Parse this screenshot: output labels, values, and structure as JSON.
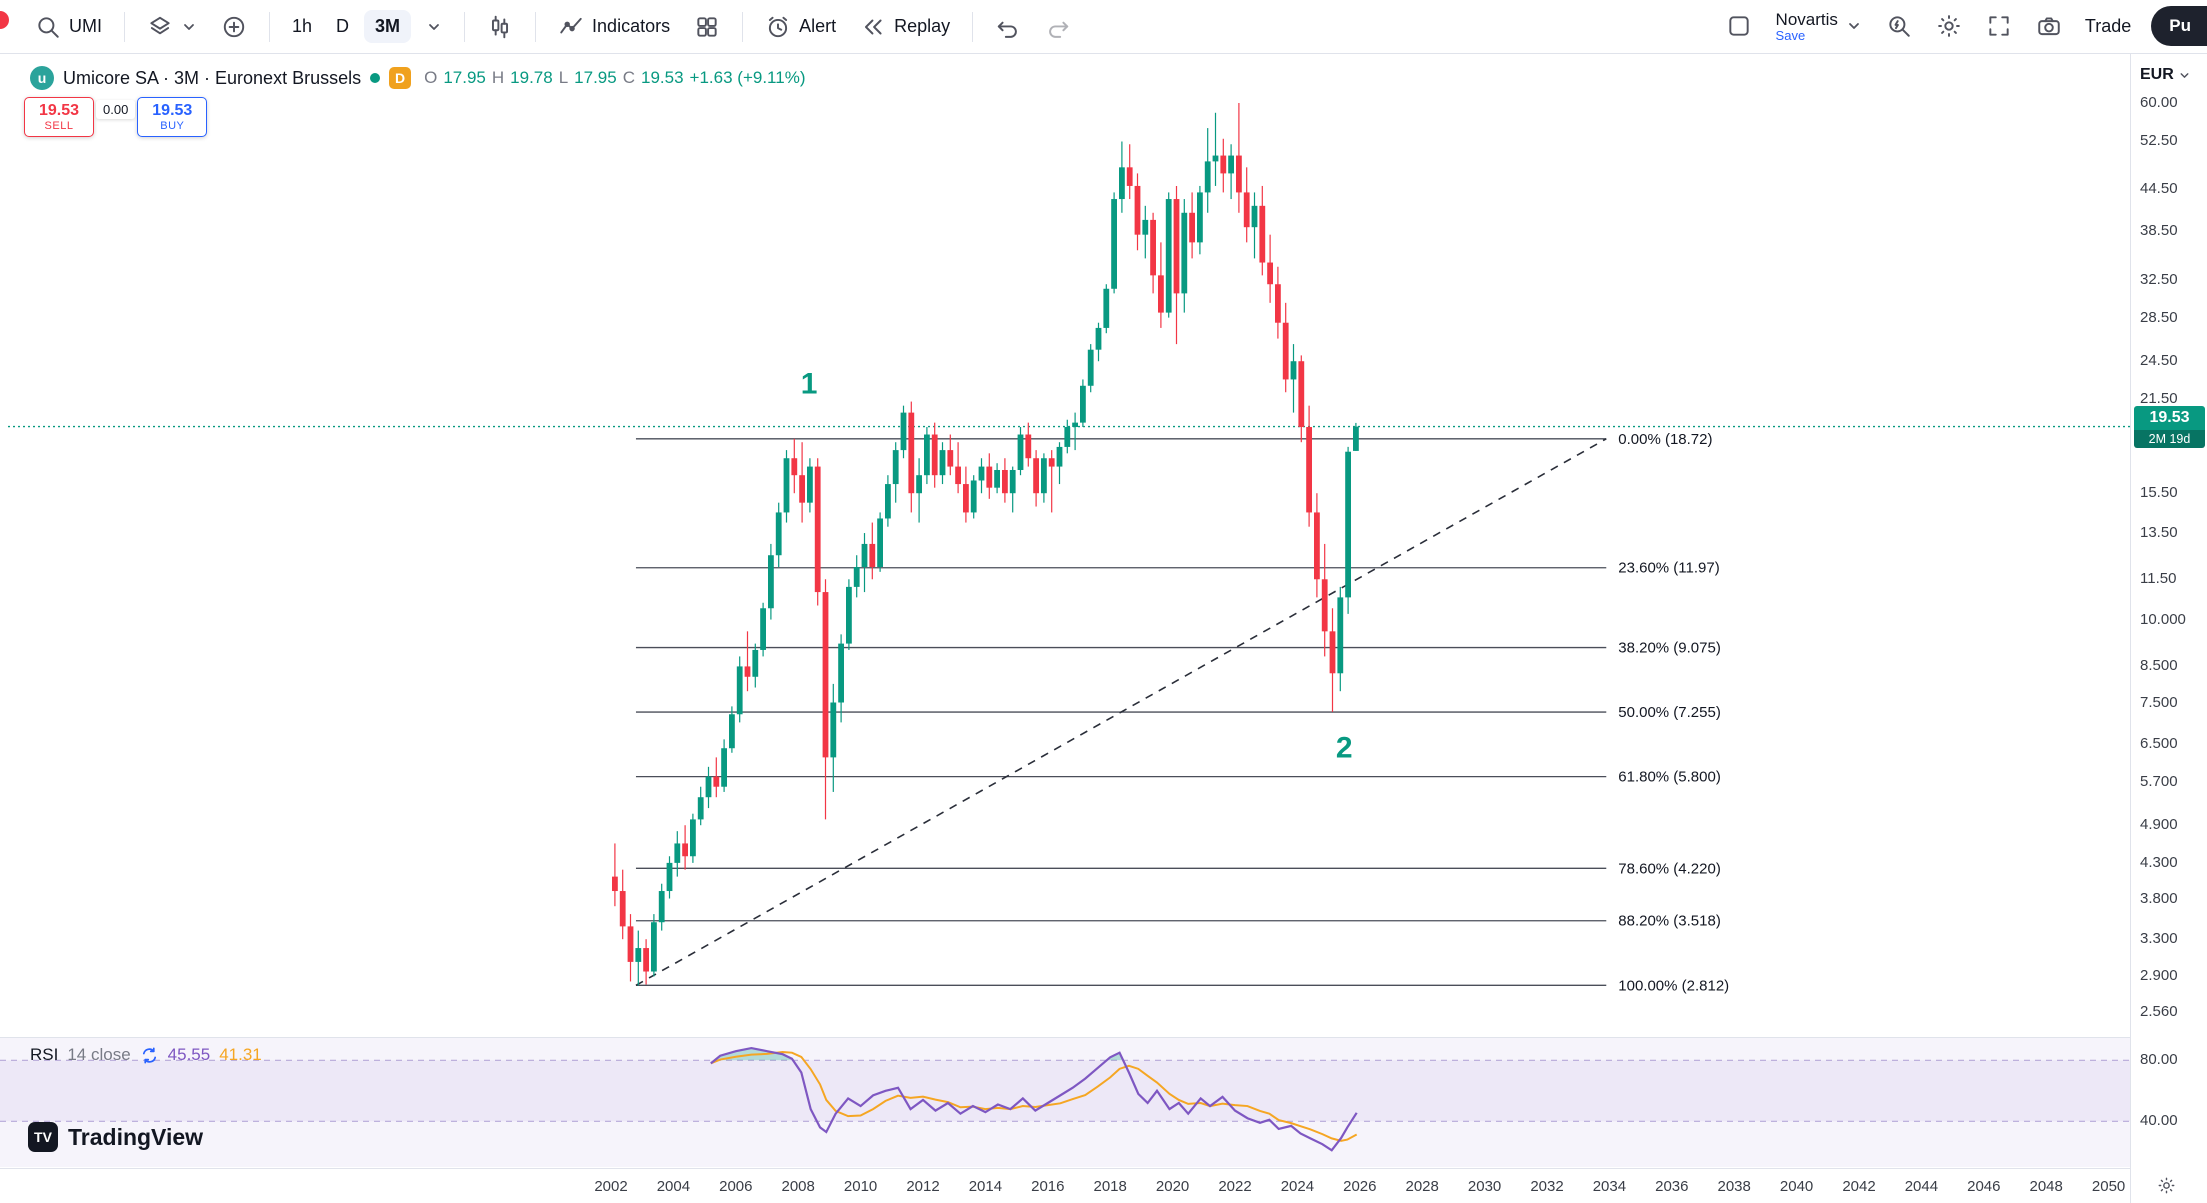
{
  "colors": {
    "up": "#089981",
    "down": "#f23645",
    "accent_blue": "#2962ff",
    "rsi_purple": "#7e57c2",
    "rsi_ma_yellow": "#f5a623",
    "sell_red": "#f23645"
  },
  "toolbar": {
    "symbol": "UMI",
    "intervals": [
      "1h",
      "D",
      "3M"
    ],
    "selected_interval": "3M",
    "indicators_label": "Indicators",
    "alert_label": "Alert",
    "replay_label": "Replay",
    "layout_name": "Novartis",
    "save_label": "Save",
    "trade_label": "Trade",
    "publish_label": "Pu"
  },
  "legend": {
    "title": "Umicore SA · 3M · Euronext Brussels",
    "delayed_badge": "D",
    "ohlc": {
      "o_label": "O",
      "o": "17.95",
      "h_label": "H",
      "h": "19.78",
      "l_label": "L",
      "l": "17.95",
      "c_label": "C",
      "c": "19.53",
      "change": "+1.63 (+9.11%)"
    }
  },
  "order_panel": {
    "sell_price": "19.53",
    "sell_label": "SELL",
    "spread": "0.00",
    "buy_price": "19.53",
    "buy_label": "BUY"
  },
  "price_axis": {
    "currency": "EUR",
    "labels": [
      {
        "text": "60.00",
        "price": 60
      },
      {
        "text": "52.50",
        "price": 52.5
      },
      {
        "text": "44.50",
        "price": 44.5
      },
      {
        "text": "38.50",
        "price": 38.5
      },
      {
        "text": "32.50",
        "price": 32.5
      },
      {
        "text": "28.50",
        "price": 28.5
      },
      {
        "text": "24.50",
        "price": 24.5
      },
      {
        "text": "21.50",
        "price": 21.5
      },
      {
        "text": "15.50",
        "price": 15.5
      },
      {
        "text": "13.50",
        "price": 13.5
      },
      {
        "text": "11.50",
        "price": 11.5
      },
      {
        "text": "10.000",
        "price": 10
      },
      {
        "text": "8.500",
        "price": 8.5
      },
      {
        "text": "7.500",
        "price": 7.5
      },
      {
        "text": "6.500",
        "price": 6.5
      },
      {
        "text": "5.700",
        "price": 5.7
      },
      {
        "text": "4.900",
        "price": 4.9
      },
      {
        "text": "4.300",
        "price": 4.3
      },
      {
        "text": "3.800",
        "price": 3.8
      },
      {
        "text": "3.300",
        "price": 3.3
      },
      {
        "text": "2.900",
        "price": 2.9
      },
      {
        "text": "2.560",
        "price": 2.56
      }
    ],
    "last_price": {
      "text": "19.53",
      "countdown": "2M 19d",
      "price": 19.53
    }
  },
  "rsi_axis": {
    "labels": [
      {
        "text": "80.00",
        "value": 80
      },
      {
        "text": "40.00",
        "value": 40
      }
    ]
  },
  "rsi_legend": {
    "title": "RSI",
    "params": "14 close",
    "value1": "45.55",
    "value2": "41.31"
  },
  "time_axis": {
    "years": [
      "2002",
      "2004",
      "2006",
      "2008",
      "2010",
      "2012",
      "2014",
      "2016",
      "2018",
      "2020",
      "2022",
      "2024",
      "2026",
      "2028",
      "2030",
      "2032",
      "2034",
      "2036",
      "2038",
      "2040",
      "2042",
      "2044",
      "2046",
      "2048",
      "2050"
    ]
  },
  "footer": {
    "logo_text": "TradingView"
  },
  "chart_data": {
    "type": "candlestick",
    "title": "Umicore SA · 3M · Euronext Brussels",
    "interval": "3M",
    "price_scale": "log",
    "x_range": [
      2002,
      2050
    ],
    "visible_price_range": [
      2.56,
      60
    ],
    "candles": [
      [
        2002.0,
        4.1,
        4.6,
        3.7,
        3.9
      ],
      [
        2002.25,
        3.9,
        4.2,
        3.3,
        3.45
      ],
      [
        2002.5,
        3.45,
        3.6,
        2.85,
        3.05
      ],
      [
        2002.75,
        3.05,
        3.4,
        2.81,
        3.2
      ],
      [
        2003.0,
        3.2,
        3.3,
        2.82,
        2.95
      ],
      [
        2003.25,
        2.95,
        3.6,
        2.9,
        3.5
      ],
      [
        2003.5,
        3.5,
        4.0,
        3.4,
        3.9
      ],
      [
        2003.75,
        3.9,
        4.4,
        3.8,
        4.3
      ],
      [
        2004.0,
        4.3,
        4.8,
        4.1,
        4.6
      ],
      [
        2004.25,
        4.6,
        4.9,
        4.2,
        4.4
      ],
      [
        2004.5,
        4.4,
        5.1,
        4.3,
        5.0
      ],
      [
        2004.75,
        5.0,
        5.6,
        4.9,
        5.4
      ],
      [
        2005.0,
        5.4,
        6.0,
        5.2,
        5.8
      ],
      [
        2005.25,
        5.8,
        6.2,
        5.4,
        5.6
      ],
      [
        2005.5,
        5.6,
        6.6,
        5.5,
        6.4
      ],
      [
        2005.75,
        6.4,
        7.4,
        6.3,
        7.2
      ],
      [
        2006.0,
        7.2,
        8.8,
        7.0,
        8.5
      ],
      [
        2006.25,
        8.5,
        9.6,
        7.8,
        8.2
      ],
      [
        2006.5,
        8.2,
        9.2,
        7.9,
        9.0
      ],
      [
        2006.75,
        9.0,
        10.6,
        8.8,
        10.4
      ],
      [
        2007.0,
        10.4,
        13.0,
        10.0,
        12.5
      ],
      [
        2007.25,
        12.5,
        15.0,
        12.0,
        14.5
      ],
      [
        2007.5,
        14.5,
        18.0,
        14.0,
        17.5
      ],
      [
        2007.75,
        17.5,
        18.72,
        15.5,
        16.5
      ],
      [
        2008.0,
        16.5,
        18.5,
        14.0,
        15.0
      ],
      [
        2008.25,
        15.0,
        17.5,
        14.5,
        17.0
      ],
      [
        2008.5,
        17.0,
        17.5,
        10.5,
        11.0
      ],
      [
        2008.75,
        11.0,
        11.5,
        5.0,
        6.2
      ],
      [
        2009.0,
        6.2,
        8.0,
        5.5,
        7.5
      ],
      [
        2009.25,
        7.5,
        9.5,
        7.0,
        9.2
      ],
      [
        2009.5,
        9.2,
        11.5,
        9.0,
        11.2
      ],
      [
        2009.75,
        11.2,
        12.5,
        10.8,
        12.0
      ],
      [
        2010.0,
        12.0,
        13.5,
        11.0,
        13.0
      ],
      [
        2010.25,
        13.0,
        14.0,
        11.5,
        12.0
      ],
      [
        2010.5,
        12.0,
        14.5,
        11.8,
        14.2
      ],
      [
        2010.75,
        14.2,
        16.5,
        13.8,
        16.0
      ],
      [
        2011.0,
        16.0,
        18.5,
        15.0,
        18.0
      ],
      [
        2011.25,
        18.0,
        21.0,
        17.5,
        20.5
      ],
      [
        2011.5,
        20.5,
        21.3,
        14.5,
        15.5
      ],
      [
        2011.75,
        15.5,
        17.5,
        14.0,
        16.5
      ],
      [
        2012.0,
        16.5,
        19.5,
        16.0,
        19.0
      ],
      [
        2012.25,
        19.0,
        19.8,
        15.8,
        16.5
      ],
      [
        2012.5,
        16.5,
        18.5,
        16.0,
        18.0
      ],
      [
        2012.75,
        18.0,
        19.0,
        16.5,
        17.0
      ],
      [
        2013.0,
        17.0,
        18.5,
        15.5,
        16.0
      ],
      [
        2013.25,
        16.0,
        17.0,
        14.0,
        14.5
      ],
      [
        2013.5,
        14.5,
        16.5,
        14.2,
        16.2
      ],
      [
        2013.75,
        16.2,
        17.5,
        15.5,
        17.0
      ],
      [
        2014.0,
        17.0,
        17.8,
        15.2,
        15.8
      ],
      [
        2014.25,
        15.8,
        17.2,
        15.5,
        16.8
      ],
      [
        2014.5,
        16.8,
        17.5,
        15.0,
        15.5
      ],
      [
        2014.75,
        15.5,
        17.0,
        14.5,
        16.8
      ],
      [
        2015.0,
        16.8,
        19.5,
        16.5,
        19.0
      ],
      [
        2015.25,
        19.0,
        19.8,
        17.0,
        17.5
      ],
      [
        2015.5,
        17.5,
        18.0,
        14.8,
        15.5
      ],
      [
        2015.75,
        15.5,
        17.8,
        15.0,
        17.5
      ],
      [
        2016.0,
        17.5,
        18.0,
        14.5,
        17.0
      ],
      [
        2016.25,
        17.0,
        18.5,
        16.0,
        18.2
      ],
      [
        2016.5,
        18.2,
        20.0,
        17.8,
        19.5
      ],
      [
        2016.75,
        19.5,
        20.5,
        18.0,
        19.8
      ],
      [
        2017.0,
        19.8,
        23.0,
        19.5,
        22.5
      ],
      [
        2017.25,
        22.5,
        26.0,
        22.0,
        25.5
      ],
      [
        2017.5,
        25.5,
        28.0,
        24.5,
        27.5
      ],
      [
        2017.75,
        27.5,
        32.0,
        27.0,
        31.5
      ],
      [
        2018.0,
        31.5,
        44.0,
        31.0,
        43.0
      ],
      [
        2018.25,
        43.0,
        52.5,
        41.0,
        48.0
      ],
      [
        2018.5,
        48.0,
        52.0,
        43.0,
        45.0
      ],
      [
        2018.75,
        45.0,
        47.0,
        36.0,
        38.0
      ],
      [
        2019.0,
        38.0,
        42.0,
        35.0,
        40.0
      ],
      [
        2019.25,
        40.0,
        41.0,
        31.0,
        33.0
      ],
      [
        2019.5,
        33.0,
        37.0,
        27.5,
        29.0
      ],
      [
        2019.75,
        29.0,
        44.0,
        28.5,
        43.0
      ],
      [
        2020.0,
        43.0,
        45.0,
        26.0,
        31.0
      ],
      [
        2020.25,
        31.0,
        43.0,
        29.0,
        41.0
      ],
      [
        2020.5,
        41.0,
        44.0,
        35.0,
        37.0
      ],
      [
        2020.75,
        37.0,
        45.0,
        35.5,
        44.0
      ],
      [
        2021.0,
        44.0,
        55.0,
        41.0,
        49.0
      ],
      [
        2021.25,
        49.0,
        58.0,
        45.0,
        50.0
      ],
      [
        2021.5,
        50.0,
        53.0,
        44.0,
        47.0
      ],
      [
        2021.75,
        47.0,
        52.0,
        43.0,
        50.0
      ],
      [
        2022.0,
        50.0,
        60.0,
        41.0,
        44.0
      ],
      [
        2022.25,
        44.0,
        48.0,
        37.0,
        39.0
      ],
      [
        2022.5,
        39.0,
        44.0,
        35.0,
        42.0
      ],
      [
        2022.75,
        42.0,
        45.0,
        33.0,
        34.5
      ],
      [
        2023.0,
        34.5,
        38.0,
        30.0,
        32.0
      ],
      [
        2023.25,
        32.0,
        34.0,
        26.5,
        28.0
      ],
      [
        2023.5,
        28.0,
        30.0,
        22.0,
        23.0
      ],
      [
        2023.75,
        23.0,
        26.0,
        20.5,
        24.5
      ],
      [
        2024.0,
        24.5,
        25.0,
        18.5,
        19.5
      ],
      [
        2024.25,
        19.5,
        21.0,
        13.8,
        14.5
      ],
      [
        2024.5,
        14.5,
        15.5,
        10.8,
        11.5
      ],
      [
        2024.75,
        11.5,
        13.0,
        8.8,
        9.6
      ],
      [
        2025.0,
        9.6,
        10.4,
        7.26,
        8.3
      ],
      [
        2025.25,
        8.3,
        11.2,
        7.8,
        10.8
      ],
      [
        2025.5,
        10.8,
        18.2,
        10.2,
        17.9
      ],
      [
        2025.75,
        17.95,
        19.78,
        17.95,
        19.53
      ]
    ],
    "fib": {
      "x_start_year": 2002.8,
      "x_end_year": 2033.9,
      "levels": [
        {
          "text": "0.00% (18.72)",
          "pct": 0.0,
          "price": 18.72
        },
        {
          "text": "23.60% (11.97)",
          "pct": 23.6,
          "price": 11.97
        },
        {
          "text": "38.20% (9.075)",
          "pct": 38.2,
          "price": 9.075
        },
        {
          "text": "50.00% (7.255)",
          "pct": 50.0,
          "price": 7.255
        },
        {
          "text": "61.80% (5.800)",
          "pct": 61.8,
          "price": 5.8
        },
        {
          "text": "78.60% (4.220)",
          "pct": 78.6,
          "price": 4.22
        },
        {
          "text": "88.20% (3.518)",
          "pct": 88.2,
          "price": 3.518
        },
        {
          "text": "100.00% (2.812)",
          "pct": 100.0,
          "price": 2.812
        }
      ]
    },
    "trendline": {
      "style": "dashed",
      "from": {
        "year": 2002.8,
        "price": 2.812
      },
      "to": {
        "year": 2033.9,
        "price": 18.72
      }
    },
    "waves": [
      {
        "text": "1",
        "year": 2008.35,
        "price": 21.9
      },
      {
        "text": "2",
        "year": 2025.5,
        "price": 6.2
      }
    ],
    "rsi": {
      "period": 14,
      "source": "close",
      "value": 45.55,
      "ma_value": 41.31,
      "bands": [
        80,
        40
      ],
      "points": [
        [
          2005.2,
          78
        ],
        [
          2005.5,
          83
        ],
        [
          2006.0,
          86
        ],
        [
          2006.5,
          88
        ],
        [
          2007.0,
          86
        ],
        [
          2007.5,
          84
        ],
        [
          2007.8,
          81
        ],
        [
          2008.1,
          72
        ],
        [
          2008.4,
          48
        ],
        [
          2008.7,
          36
        ],
        [
          2008.9,
          33
        ],
        [
          2009.2,
          45
        ],
        [
          2009.6,
          55
        ],
        [
          2010.0,
          50
        ],
        [
          2010.4,
          57
        ],
        [
          2010.8,
          60
        ],
        [
          2011.2,
          62
        ],
        [
          2011.6,
          48
        ],
        [
          2012.0,
          54
        ],
        [
          2012.4,
          47
        ],
        [
          2012.8,
          52
        ],
        [
          2013.2,
          45
        ],
        [
          2013.6,
          50
        ],
        [
          2014.0,
          46
        ],
        [
          2014.4,
          51
        ],
        [
          2014.8,
          48
        ],
        [
          2015.2,
          55
        ],
        [
          2015.6,
          47
        ],
        [
          2016.0,
          52
        ],
        [
          2016.4,
          57
        ],
        [
          2016.8,
          62
        ],
        [
          2017.2,
          68
        ],
        [
          2017.6,
          75
        ],
        [
          2018.0,
          82
        ],
        [
          2018.3,
          85
        ],
        [
          2018.6,
          72
        ],
        [
          2018.9,
          58
        ],
        [
          2019.2,
          52
        ],
        [
          2019.5,
          60
        ],
        [
          2019.9,
          48
        ],
        [
          2020.2,
          52
        ],
        [
          2020.5,
          45
        ],
        [
          2020.9,
          55
        ],
        [
          2021.2,
          50
        ],
        [
          2021.6,
          56
        ],
        [
          2022.0,
          47
        ],
        [
          2022.4,
          42
        ],
        [
          2022.8,
          39
        ],
        [
          2023.1,
          41
        ],
        [
          2023.4,
          35
        ],
        [
          2023.8,
          37
        ],
        [
          2024.1,
          32
        ],
        [
          2024.4,
          29
        ],
        [
          2024.8,
          25
        ],
        [
          2025.1,
          21
        ],
        [
          2025.4,
          29
        ],
        [
          2025.6,
          36
        ],
        [
          2025.9,
          45.55
        ]
      ]
    }
  }
}
